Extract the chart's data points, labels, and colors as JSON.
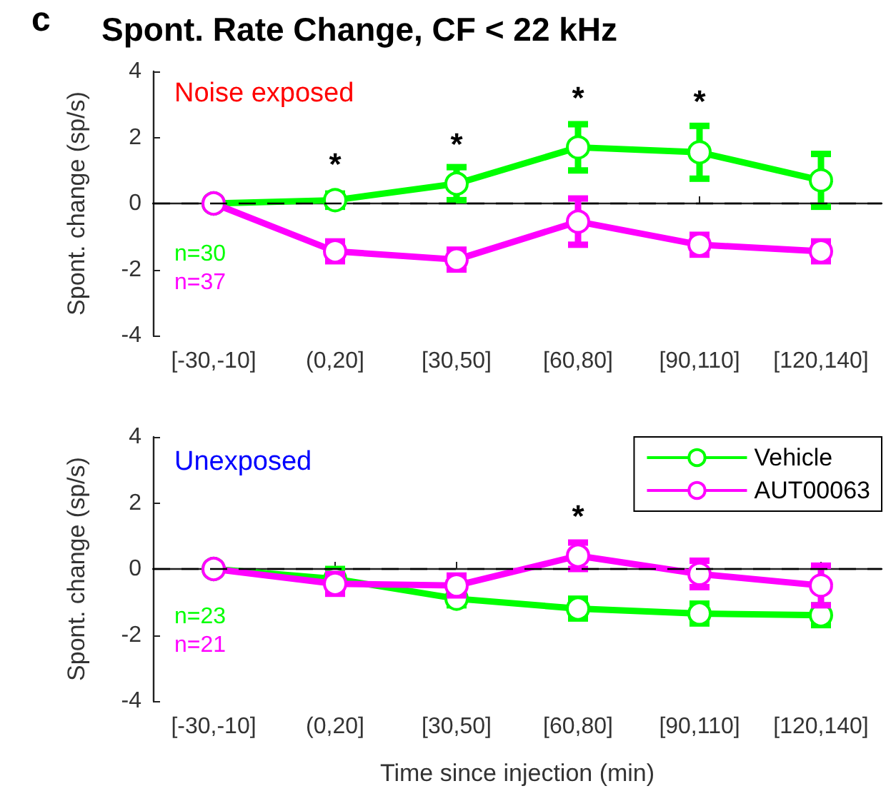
{
  "chart_data": [
    {
      "type": "line",
      "title": "Spont. Rate Change, CF < 22 kHz",
      "ylabel": "Spont. change (sp/s)",
      "categories": [
        "[-30,-10]",
        "(0,20]",
        "[30,50]",
        "[60,80]",
        "[90,110]",
        "[120,140]"
      ],
      "series": [
        {
          "color": "#00ff00",
          "values": [
            0,
            0.1,
            0.6,
            1.7,
            1.55,
            0.7
          ],
          "errors": [
            null,
            0.2,
            0.5,
            0.7,
            0.8,
            0.8
          ]
        },
        {
          "color": "#ff00ff",
          "values": [
            0,
            -1.45,
            -1.7,
            -0.55,
            -1.25,
            -1.45
          ],
          "errors": [
            null,
            0.3,
            0.3,
            0.7,
            0.3,
            0.3
          ]
        }
      ],
      "ylim": [
        -4,
        4
      ],
      "yticks": [
        -4,
        -2,
        0,
        2,
        4
      ],
      "grid": false,
      "legend": false,
      "marker": "circle",
      "line_style": "solid",
      "ref_lines": [
        {
          "axis": "y",
          "value": 0,
          "line_style": "dashed",
          "color": "#000000"
        }
      ],
      "annotations": [
        "c",
        "Noise exposed",
        "n=30",
        "n=37",
        "*",
        "*",
        "*",
        "*"
      ]
    },
    {
      "type": "line",
      "xlabel": "Time since injection (min)",
      "ylabel": "Spont. change (sp/s)",
      "categories": [
        "[-30,-10]",
        "(0,20]",
        "[30,50]",
        "[60,80]",
        "[90,110]",
        "[120,140]"
      ],
      "series": [
        {
          "name": "Vehicle",
          "color": "#00ff00",
          "values": [
            0,
            -0.3,
            -0.9,
            -1.2,
            -1.35,
            -1.4
          ],
          "errors": [
            null,
            0.3,
            0.2,
            0.3,
            0.3,
            0.3
          ]
        },
        {
          "name": "AUT00063",
          "color": "#ff00ff",
          "values": [
            0,
            -0.45,
            -0.5,
            0.4,
            -0.15,
            -0.5
          ],
          "errors": [
            null,
            0.3,
            0.3,
            0.4,
            0.4,
            0.6
          ]
        }
      ],
      "ylim": [
        -4,
        4
      ],
      "yticks": [
        -4,
        -2,
        0,
        2,
        4
      ],
      "grid": false,
      "legend": "top right",
      "marker": "circle",
      "line_style": "solid",
      "ref_lines": [
        {
          "axis": "y",
          "value": 0,
          "line_style": "dashed",
          "color": "#000000"
        }
      ],
      "annotations": [
        "Unexposed",
        "n=23",
        "n=21",
        "*"
      ]
    }
  ]
}
